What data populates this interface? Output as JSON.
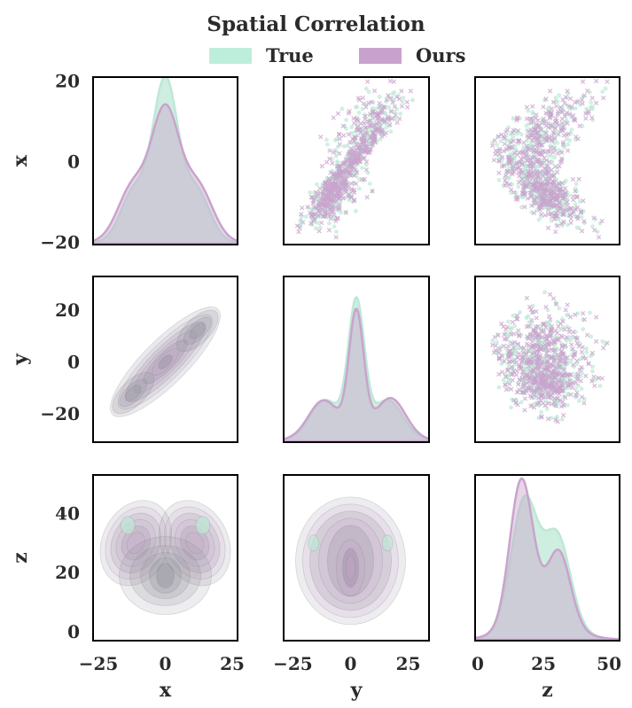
{
  "chart_data": {
    "type": "pairplot",
    "title": "Spatial Correlation",
    "legend": {
      "placement": "top-center",
      "entries": [
        {
          "label": "True",
          "color": "#bdeedc"
        },
        {
          "label": "Ours",
          "color": "#c8a2cc"
        }
      ]
    },
    "variables": [
      "x",
      "y",
      "z"
    ],
    "panels": {
      "diagonal": "kde",
      "upper": "scatter",
      "lower": "kde-contour"
    },
    "axes": {
      "x": {
        "label": "x",
        "range": [
          -27,
          27
        ],
        "ticks": [
          "-25",
          "0",
          "25"
        ],
        "tick_values": [
          -25,
          0,
          25
        ],
        "row_ticks": [
          "-20",
          "0",
          "20"
        ],
        "row_tick_values": [
          -20,
          0,
          20
        ],
        "row_range": [
          -20.5,
          21
        ]
      },
      "y": {
        "label": "y",
        "range": [
          -29,
          34
        ],
        "ticks": [
          "-25",
          "0",
          "25"
        ],
        "tick_values": [
          -25,
          0,
          25
        ],
        "row_ticks": [
          "-20",
          "0",
          "20"
        ],
        "row_tick_values": [
          -20,
          0,
          20
        ],
        "row_range": [
          -31,
          33
        ]
      },
      "z": {
        "label": "z",
        "range": [
          -1,
          54
        ],
        "ticks": [
          "0",
          "25",
          "50"
        ],
        "tick_values": [
          0,
          25,
          50
        ],
        "row_ticks": [
          "0",
          "20",
          "40"
        ],
        "row_tick_values": [
          0,
          20,
          40
        ],
        "row_range": [
          -3,
          53
        ]
      }
    },
    "density": {
      "x": {
        "true": {
          "peak": 18.5,
          "shoulder": 4
        },
        "ours": {
          "peak": 14.5,
          "shoulder": 5
        }
      },
      "y": {
        "true": {
          "peak": 30,
          "shoulder": 7
        },
        "ours": {
          "peak": 28,
          "shoulder": 7
        }
      },
      "z": {
        "true": {
          "peak1": 19,
          "peak2": 31
        },
        "ours": {
          "peak1": 19,
          "peak2": 31
        }
      }
    },
    "grid": false
  },
  "colors": {
    "true_fill": "#bde8d6",
    "ours_fill": "#c9a3cd",
    "overlap": "#cde0da",
    "contour": "#8c8a94"
  }
}
